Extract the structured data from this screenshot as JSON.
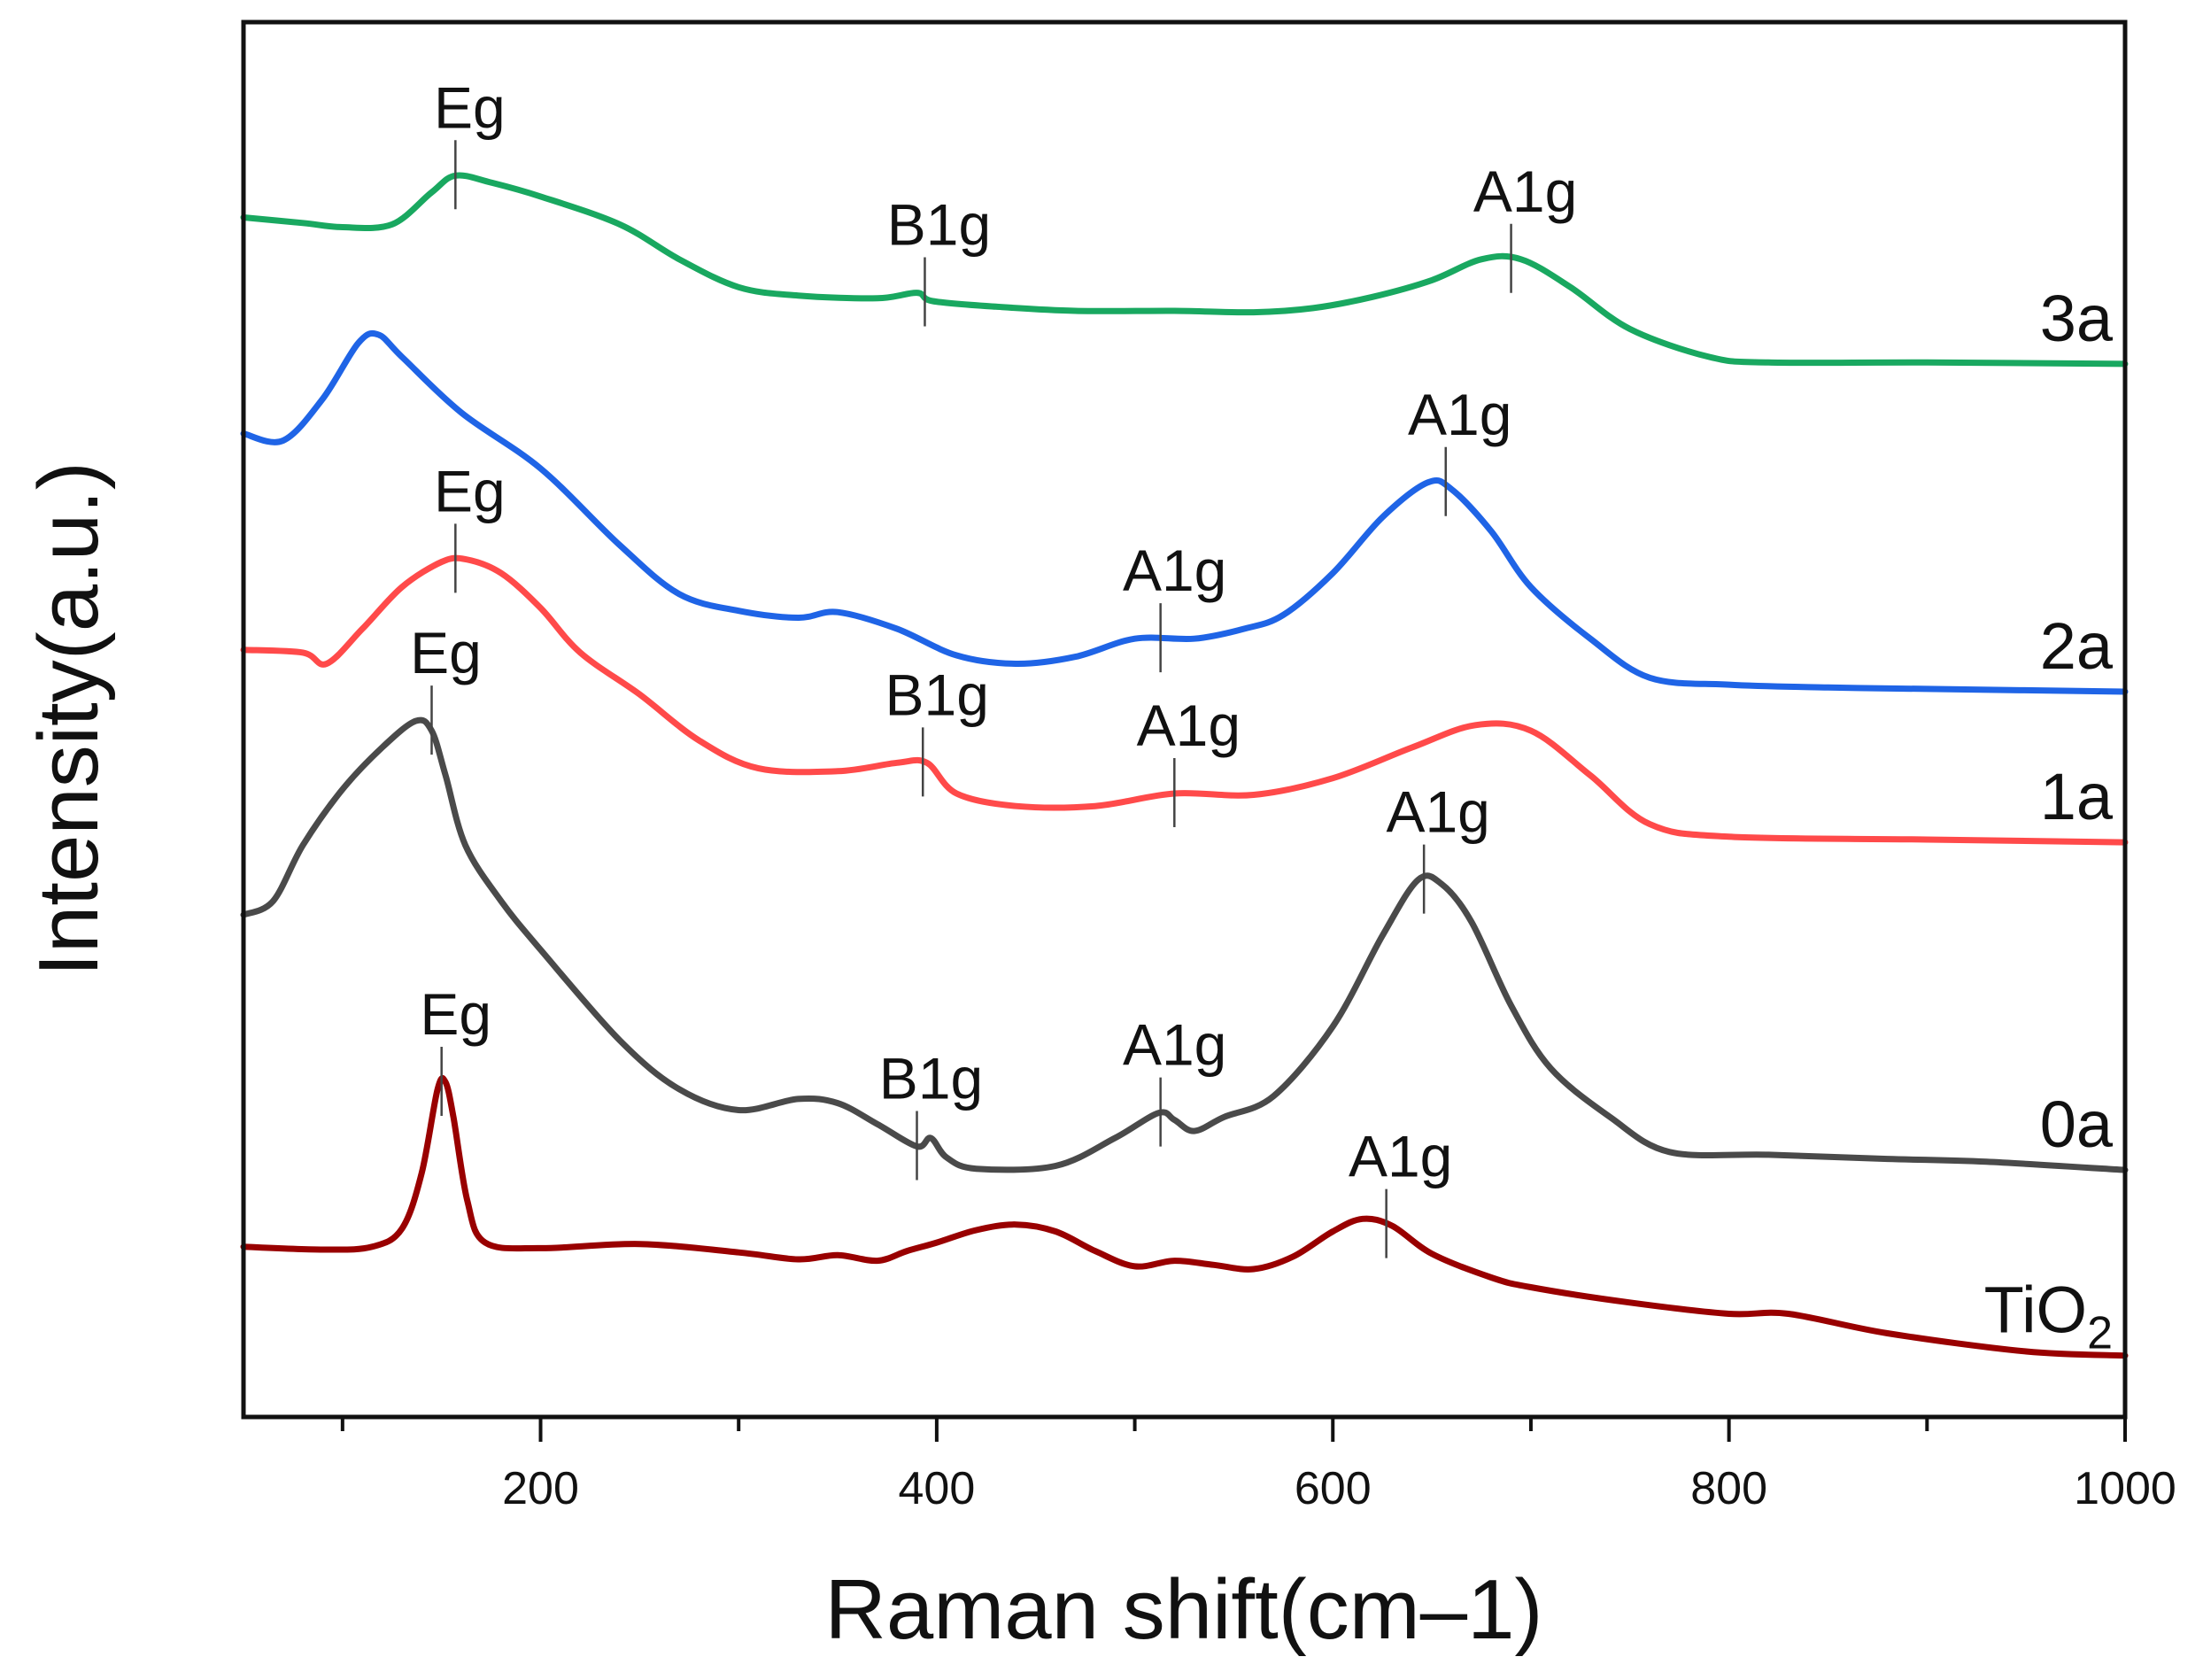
{
  "chart_data": {
    "type": "line",
    "title": "",
    "xlabel": "Raman shift(cm–1)",
    "ylabel": "Intensity(a.u.)",
    "xlim": [
      50,
      1000
    ],
    "ylim": [
      0,
      100
    ],
    "xticks": [
      200,
      400,
      600,
      800,
      1000
    ],
    "x_minor_ticks": [
      100,
      300,
      500,
      700,
      900
    ],
    "y_ticks_shown": false,
    "grid": false,
    "legend": "labels at right end of each curve",
    "series": [
      {
        "name": "TiO2",
        "label_main": "TiO",
        "label_sub": "2",
        "color": "#990000",
        "points": [
          [
            50,
            12.2
          ],
          [
            90,
            12.0
          ],
          [
            115,
            12.2
          ],
          [
            130,
            13.5
          ],
          [
            140,
            17.5
          ],
          [
            148,
            23.5
          ],
          [
            152,
            24.0
          ],
          [
            156,
            21.5
          ],
          [
            163,
            15.5
          ],
          [
            172,
            12.5
          ],
          [
            200,
            12.1
          ],
          [
            250,
            12.4
          ],
          [
            300,
            11.8
          ],
          [
            330,
            11.3
          ],
          [
            350,
            11.6
          ],
          [
            370,
            11.2
          ],
          [
            385,
            11.9
          ],
          [
            400,
            12.5
          ],
          [
            420,
            13.4
          ],
          [
            440,
            13.8
          ],
          [
            460,
            13.3
          ],
          [
            480,
            11.9
          ],
          [
            500,
            10.8
          ],
          [
            520,
            11.2
          ],
          [
            540,
            10.9
          ],
          [
            560,
            10.6
          ],
          [
            580,
            11.5
          ],
          [
            600,
            13.3
          ],
          [
            615,
            14.2
          ],
          [
            630,
            13.7
          ],
          [
            650,
            11.7
          ],
          [
            680,
            10.0
          ],
          [
            700,
            9.3
          ],
          [
            750,
            8.2
          ],
          [
            800,
            7.4
          ],
          [
            830,
            7.4
          ],
          [
            880,
            6.0
          ],
          [
            950,
            4.7
          ],
          [
            1000,
            4.4
          ]
        ],
        "peaks": [
          {
            "label": "Eg",
            "x": 150,
            "value": 24.0
          },
          {
            "label": "A1g",
            "x": 627,
            "value": 13.8
          }
        ]
      },
      {
        "name": "0a",
        "label_main": "0a",
        "label_sub": "",
        "color": "#4a4a4a",
        "points": [
          [
            50,
            36.0
          ],
          [
            65,
            37.0
          ],
          [
            80,
            41.0
          ],
          [
            100,
            45.0
          ],
          [
            120,
            48.0
          ],
          [
            137,
            49.9
          ],
          [
            145,
            49.2
          ],
          [
            152,
            46.0
          ],
          [
            162,
            41.0
          ],
          [
            180,
            37.0
          ],
          [
            200,
            33.5
          ],
          [
            240,
            27.0
          ],
          [
            270,
            23.5
          ],
          [
            300,
            22.0
          ],
          [
            330,
            22.8
          ],
          [
            350,
            22.5
          ],
          [
            370,
            21.0
          ],
          [
            390,
            19.4
          ],
          [
            397,
            20.0
          ],
          [
            405,
            18.6
          ],
          [
            420,
            17.8
          ],
          [
            460,
            18.0
          ],
          [
            490,
            20.0
          ],
          [
            512,
            21.8
          ],
          [
            520,
            21.3
          ],
          [
            530,
            20.5
          ],
          [
            545,
            21.5
          ],
          [
            570,
            23.0
          ],
          [
            600,
            28.0
          ],
          [
            625,
            34.5
          ],
          [
            643,
            38.5
          ],
          [
            655,
            38.2
          ],
          [
            670,
            35.5
          ],
          [
            690,
            29.5
          ],
          [
            710,
            25.0
          ],
          [
            740,
            21.5
          ],
          [
            770,
            19.0
          ],
          [
            820,
            18.8
          ],
          [
            880,
            18.5
          ],
          [
            930,
            18.3
          ],
          [
            1000,
            17.7
          ]
        ],
        "peaks": [
          {
            "label": "Eg",
            "x": 145,
            "value": 49.9
          },
          {
            "label": "B1g",
            "x": 390,
            "value": 19.4
          },
          {
            "label": "A1g",
            "x": 513,
            "value": 21.8
          },
          {
            "label": "A1g",
            "x": 646,
            "value": 38.5
          }
        ]
      },
      {
        "name": "1a",
        "label_main": "1a",
        "label_sub": "",
        "color": "#ff4a4a",
        "points": [
          [
            50,
            55.0
          ],
          [
            80,
            54.8
          ],
          [
            92,
            54.0
          ],
          [
            110,
            56.5
          ],
          [
            130,
            59.5
          ],
          [
            150,
            61.3
          ],
          [
            162,
            61.5
          ],
          [
            180,
            60.5
          ],
          [
            200,
            58.0
          ],
          [
            220,
            54.8
          ],
          [
            250,
            51.8
          ],
          [
            280,
            48.5
          ],
          [
            310,
            46.5
          ],
          [
            350,
            46.3
          ],
          [
            380,
            46.9
          ],
          [
            395,
            46.9
          ],
          [
            410,
            44.7
          ],
          [
            440,
            43.8
          ],
          [
            480,
            43.8
          ],
          [
            520,
            44.7
          ],
          [
            560,
            44.6
          ],
          [
            600,
            45.8
          ],
          [
            640,
            48.0
          ],
          [
            672,
            49.6
          ],
          [
            700,
            49.2
          ],
          [
            730,
            46.0
          ],
          [
            760,
            42.5
          ],
          [
            800,
            41.6
          ],
          [
            900,
            41.4
          ],
          [
            1000,
            41.2
          ]
        ],
        "peaks": [
          {
            "label": "Eg",
            "x": 157,
            "value": 61.5
          },
          {
            "label": "B1g",
            "x": 393,
            "value": 46.9
          },
          {
            "label": "A1g",
            "x": 520,
            "value": 44.7
          }
        ]
      },
      {
        "name": "2a",
        "label_main": "2a",
        "label_sub": "",
        "color": "#1f64e6",
        "points": [
          [
            50,
            70.5
          ],
          [
            70,
            70.0
          ],
          [
            90,
            73.0
          ],
          [
            108,
            77.0
          ],
          [
            118,
            77.6
          ],
          [
            130,
            76.0
          ],
          [
            160,
            72.0
          ],
          [
            200,
            68.0
          ],
          [
            240,
            62.5
          ],
          [
            270,
            59.0
          ],
          [
            300,
            57.8
          ],
          [
            330,
            57.3
          ],
          [
            350,
            57.7
          ],
          [
            380,
            56.5
          ],
          [
            410,
            54.6
          ],
          [
            440,
            54.0
          ],
          [
            470,
            54.5
          ],
          [
            500,
            55.8
          ],
          [
            530,
            55.8
          ],
          [
            555,
            56.5
          ],
          [
            575,
            57.5
          ],
          [
            600,
            60.5
          ],
          [
            625,
            64.5
          ],
          [
            648,
            67.0
          ],
          [
            660,
            66.5
          ],
          [
            680,
            63.5
          ],
          [
            700,
            59.5
          ],
          [
            730,
            55.8
          ],
          [
            760,
            53.0
          ],
          [
            800,
            52.5
          ],
          [
            850,
            52.3
          ],
          [
            900,
            52.2
          ],
          [
            1000,
            52.0
          ]
        ],
        "peaks": [
          {
            "label": "A1g",
            "x": 513,
            "value": 55.8
          },
          {
            "label": "A1g",
            "x": 657,
            "value": 67.0
          }
        ]
      },
      {
        "name": "3a",
        "label_main": "3a",
        "label_sub": "",
        "color": "#19a860",
        "points": [
          [
            50,
            86.0
          ],
          [
            80,
            85.6
          ],
          [
            100,
            85.3
          ],
          [
            125,
            85.5
          ],
          [
            145,
            87.8
          ],
          [
            157,
            89.0
          ],
          [
            175,
            88.5
          ],
          [
            200,
            87.5
          ],
          [
            240,
            85.5
          ],
          [
            270,
            83.0
          ],
          [
            300,
            81.0
          ],
          [
            330,
            80.4
          ],
          [
            370,
            80.2
          ],
          [
            390,
            80.6
          ],
          [
            398,
            80.0
          ],
          [
            430,
            79.6
          ],
          [
            470,
            79.3
          ],
          [
            520,
            79.3
          ],
          [
            560,
            79.2
          ],
          [
            590,
            79.5
          ],
          [
            620,
            80.3
          ],
          [
            650,
            81.5
          ],
          [
            675,
            83.0
          ],
          [
            695,
            83.0
          ],
          [
            720,
            81.0
          ],
          [
            750,
            78.0
          ],
          [
            790,
            76.0
          ],
          [
            820,
            75.6
          ],
          [
            900,
            75.6
          ],
          [
            1000,
            75.5
          ]
        ],
        "peaks": [
          {
            "label": "Eg",
            "x": 157,
            "value": 89.0
          },
          {
            "label": "B1g",
            "x": 394,
            "value": 80.6
          },
          {
            "label": "A1g",
            "x": 690,
            "value": 83.0
          }
        ]
      }
    ]
  }
}
